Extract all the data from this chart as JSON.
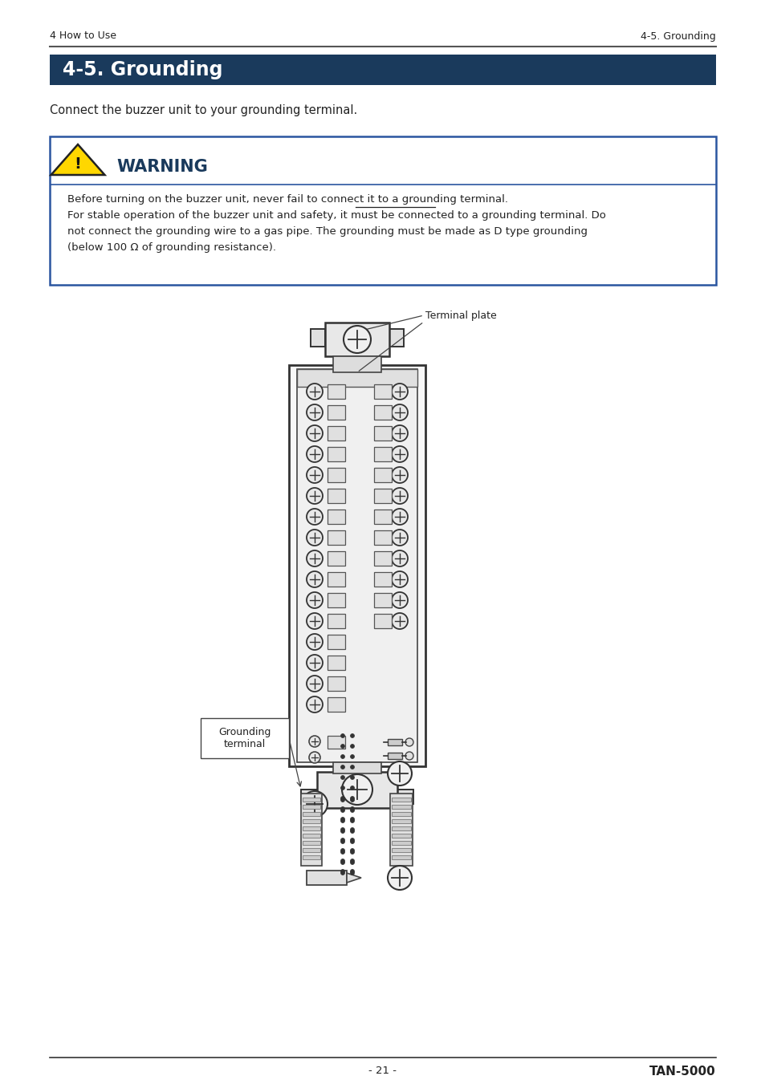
{
  "page_bg": "#ffffff",
  "header_left": "4 How to Use",
  "header_right": "4-5. Grounding",
  "header_line_color": "#555555",
  "section_title": "4-5. Grounding",
  "section_title_bg": "#1a3a5c",
  "section_title_color": "#ffffff",
  "body_text": "Connect the buzzer unit to your grounding terminal.",
  "warning_box_border": "#2a55a0",
  "warning_title": "WARNING",
  "warning_title_color": "#1a3a5c",
  "warning_line1": "Before turning on the buzzer unit, never fail to connect it to a grounding terminal.",
  "warning_line2": "For stable operation of the buzzer unit and safety, it must be connected to a grounding terminal. Do",
  "warning_line3": "not connect the grounding wire to a gas pipe. The grounding must be made as D type grounding",
  "warning_line4": "(below 100 Ω of grounding resistance).",
  "footer_page": "- 21 -",
  "footer_model": "TAN-5000",
  "footer_line_color": "#333333"
}
